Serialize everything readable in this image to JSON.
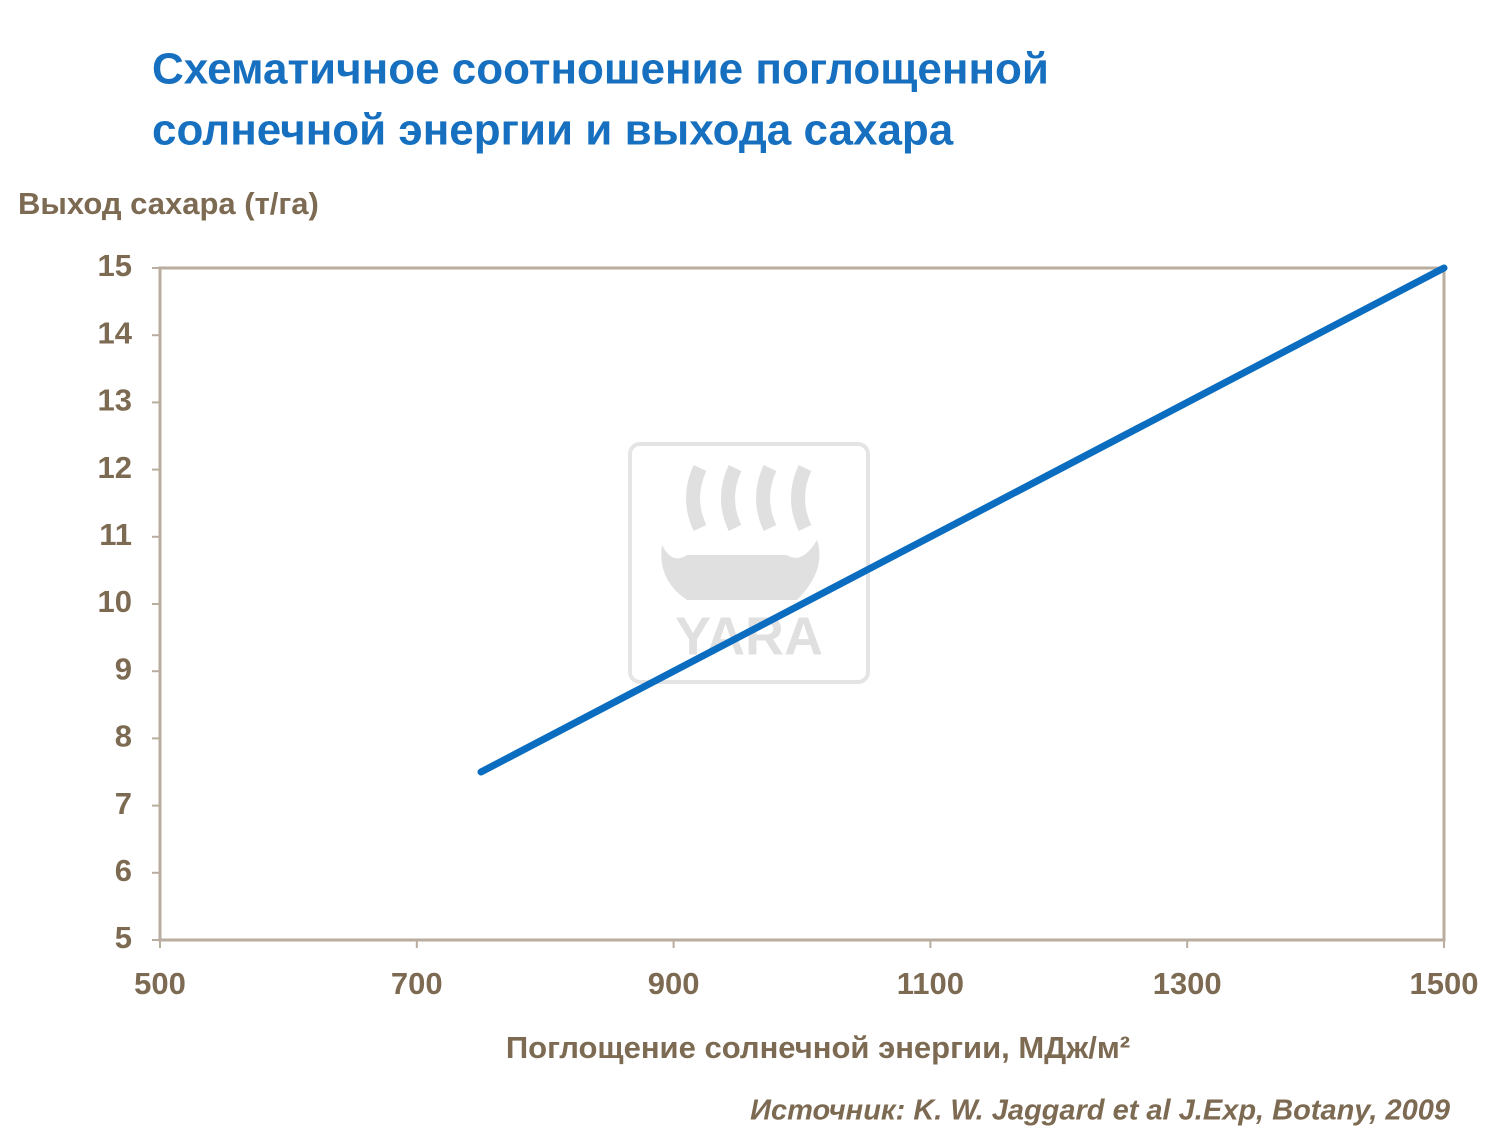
{
  "chart_data": {
    "type": "line",
    "title": [
      "Схематичное соотношение поглощенной",
      "солнечной энергии и выхода сахара"
    ],
    "y_label": "Выход сахара (т/га)",
    "x_label": "Поглощение солнечной энергии, МДж/м²",
    "source": "Источник: K. W. Jaggard et al J.Exp, Botany, 2009",
    "watermark": "YARA",
    "x": [
      750,
      1500
    ],
    "series": [
      {
        "color": "#0b6dc0",
        "values": [
          7.5,
          15
        ]
      }
    ],
    "xlim": [
      500,
      1500
    ],
    "xticks": [
      500,
      700,
      900,
      1100,
      1300,
      1500
    ],
    "ylim": [
      5,
      15
    ],
    "yticks": [
      5,
      6,
      7,
      8,
      9,
      10,
      11,
      12,
      13,
      14,
      15
    ],
    "grid": false
  }
}
